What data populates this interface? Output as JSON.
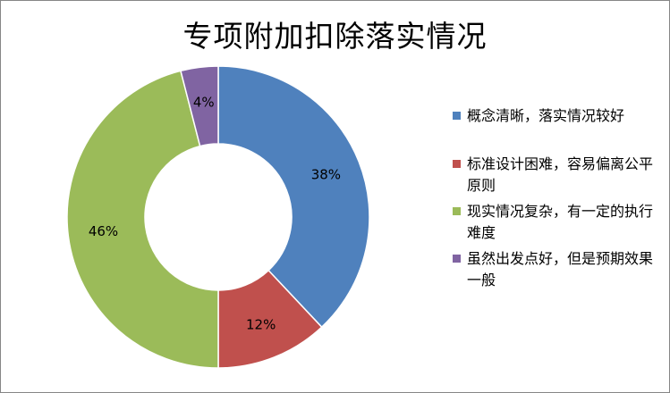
{
  "chart_data": {
    "type": "pie",
    "title": "专项附加扣除落实情况",
    "donut": true,
    "legend_position": "right",
    "slices": [
      {
        "label": "概念清晰，落实情况较好",
        "value": 38,
        "value_label": "38%",
        "color": "#4F81BD"
      },
      {
        "label": "标准设计困难，容易偏离公平原则",
        "value": 12,
        "value_label": "12%",
        "color": "#C0504D"
      },
      {
        "label": "现实情况复杂，有一定的执行难度",
        "value": 46,
        "value_label": "46%",
        "color": "#9BBB59"
      },
      {
        "label": "虽然出发点好，但是预期效果一般",
        "value": 4,
        "value_label": "4%",
        "color": "#8064A2"
      }
    ]
  }
}
